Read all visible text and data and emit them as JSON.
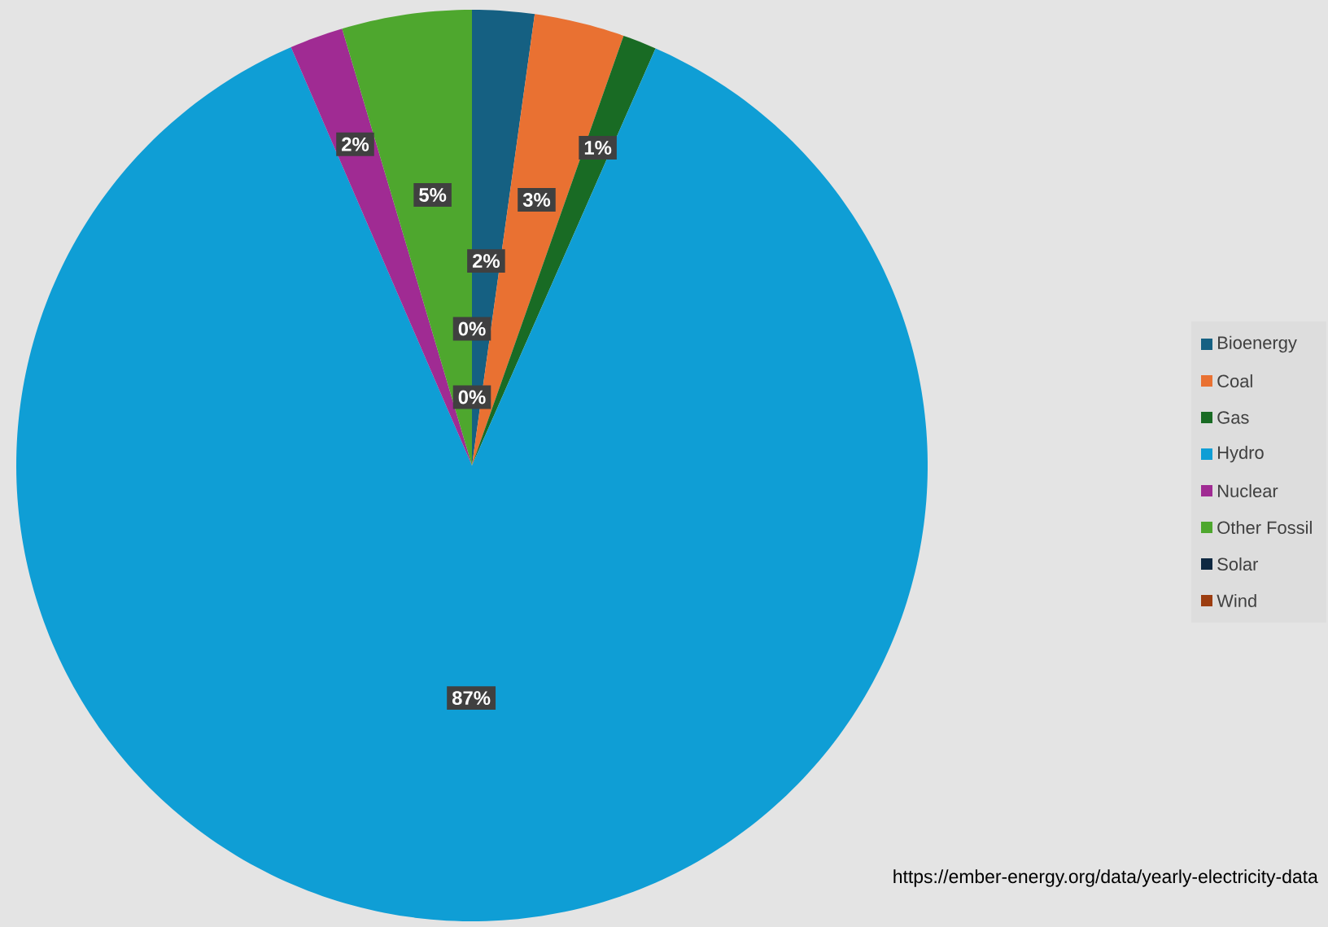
{
  "chart_data": {
    "type": "pie",
    "categories": [
      "Bioenergy",
      "Coal",
      "Gas",
      "Hydro",
      "Nuclear",
      "Other Fossil",
      "Solar",
      "Wind"
    ],
    "values": [
      2.2,
      3.2,
      1.2,
      86.9,
      1.9,
      4.6,
      0,
      0
    ],
    "colors": [
      "#156082",
      "#e97132",
      "#196b24",
      "#0f9ed5",
      "#a02b93",
      "#4ea72e",
      "#0e2841",
      "#9c3d10"
    ],
    "value_labels": [
      "2%",
      "3%",
      "1%",
      "87%",
      "2%",
      "5%",
      "0%",
      "0%"
    ],
    "legend": "right",
    "annotations": [
      "https://ember-energy.org/data/yearly-electricity-data"
    ]
  }
}
